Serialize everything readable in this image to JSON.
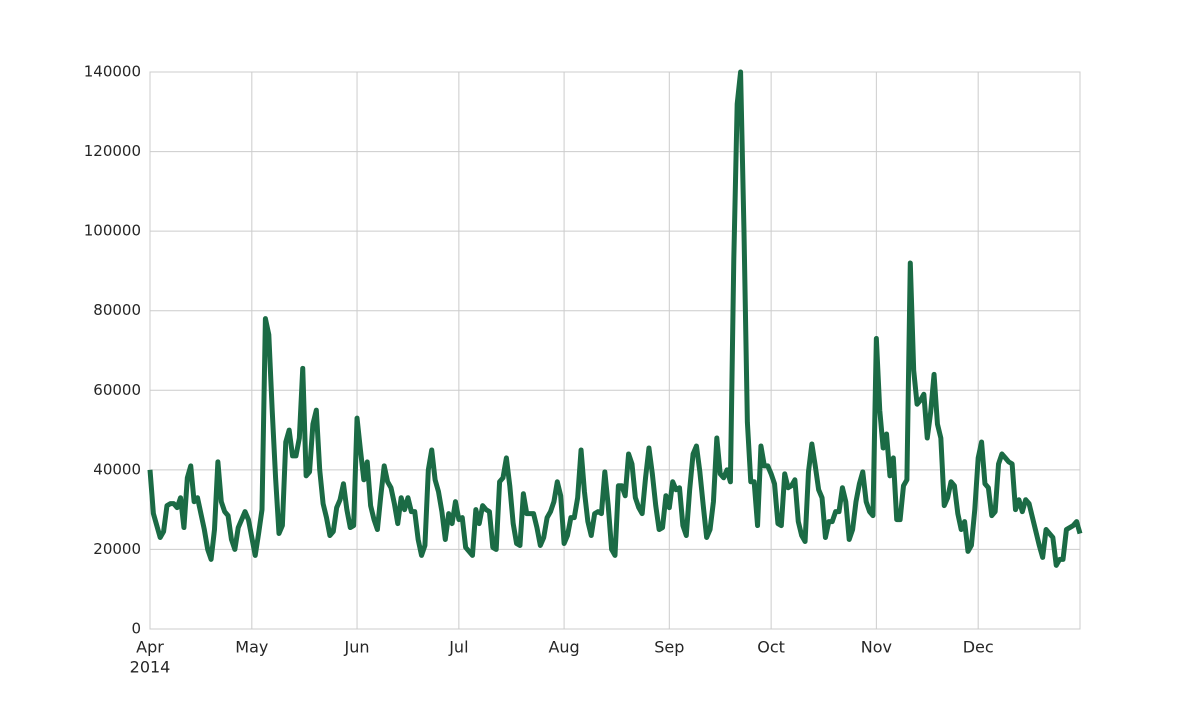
{
  "chart_data": {
    "type": "line",
    "color": "#1b6b45",
    "values": [
      40000,
      29000,
      26000,
      23000,
      24500,
      31000,
      31500,
      31500,
      30500,
      33000,
      25500,
      38000,
      41000,
      32000,
      33000,
      29000,
      25000,
      20000,
      17500,
      25000,
      42000,
      32000,
      29500,
      28500,
      22500,
      20000,
      25500,
      27500,
      29500,
      27500,
      23000,
      18500,
      24000,
      30000,
      78000,
      74000,
      55000,
      38000,
      24000,
      26000,
      47000,
      50000,
      43500,
      43500,
      48000,
      65500,
      38500,
      39500,
      51500,
      55000,
      40000,
      31500,
      28000,
      23500,
      24500,
      30500,
      32500,
      36500,
      30000,
      25500,
      26000,
      53000,
      45000,
      37500,
      42000,
      31000,
      27500,
      25000,
      33500,
      41000,
      37000,
      35500,
      31500,
      26500,
      33000,
      30000,
      33000,
      29500,
      29500,
      22500,
      18500,
      21000,
      40000,
      45000,
      37500,
      34500,
      29500,
      22500,
      29000,
      26500,
      32000,
      27500,
      28000,
      20500,
      19500,
      18500,
      30000,
      26500,
      31000,
      30000,
      29500,
      20500,
      20000,
      37000,
      38000,
      43000,
      36000,
      26500,
      21500,
      21000,
      34000,
      29000,
      29000,
      29000,
      25500,
      21000,
      23000,
      28000,
      29500,
      32000,
      37000,
      33500,
      21500,
      23500,
      28000,
      28000,
      33000,
      45000,
      34500,
      27000,
      23500,
      29000,
      29500,
      29000,
      39500,
      31000,
      20000,
      18500,
      36000,
      36000,
      33500,
      44000,
      41500,
      33000,
      30500,
      29000,
      38000,
      45500,
      39000,
      31000,
      25000,
      25500,
      33500,
      30500,
      37000,
      35000,
      35500,
      26000,
      23500,
      35000,
      44000,
      46000,
      39500,
      31000,
      23000,
      25000,
      32000,
      48000,
      39000,
      38000,
      40000,
      37000,
      93000,
      132000,
      140000,
      100000,
      52000,
      37000,
      37000,
      26000,
      46000,
      41000,
      41000,
      39000,
      36500,
      26500,
      26000,
      39000,
      35500,
      36000,
      37500,
      27000,
      23500,
      22000,
      39500,
      46500,
      41000,
      35000,
      33000,
      23000,
      27000,
      27000,
      29500,
      29500,
      35500,
      32000,
      22500,
      25000,
      32000,
      36500,
      39500,
      32000,
      29500,
      28500,
      73000,
      55000,
      45500,
      49000,
      38500,
      43000,
      27500,
      27500,
      36000,
      37500,
      92000,
      65000,
      56500,
      57500,
      59000,
      48000,
      54500,
      64000,
      51500,
      48000,
      31000,
      33000,
      37000,
      36000,
      29000,
      25000,
      27000,
      19500,
      21000,
      30000,
      43000,
      47000,
      36500,
      35500,
      28500,
      29500,
      41500,
      44000,
      43000,
      42000,
      41500,
      30000,
      32500,
      29500,
      32500,
      31500,
      28000,
      24500,
      21000,
      18000,
      25000,
      24000,
      23000,
      16000,
      17500,
      17500,
      25000,
      25500,
      26000,
      27000,
      24000
    ],
    "xlim": [
      0,
      274
    ],
    "xticks": [
      {
        "value": 0,
        "label": "Apr"
      },
      {
        "value": 30,
        "label": "May"
      },
      {
        "value": 61,
        "label": "Jun"
      },
      {
        "value": 91,
        "label": "Jul"
      },
      {
        "value": 122,
        "label": "Aug"
      },
      {
        "value": 153,
        "label": "Sep"
      },
      {
        "value": 183,
        "label": "Oct"
      },
      {
        "value": 214,
        "label": "Nov"
      },
      {
        "value": 244,
        "label": "Dec"
      }
    ],
    "x_year_label": "2014",
    "ylim": [
      0,
      140000
    ],
    "yticks": [
      0,
      20000,
      40000,
      60000,
      80000,
      100000,
      120000,
      140000
    ],
    "grid": true
  }
}
